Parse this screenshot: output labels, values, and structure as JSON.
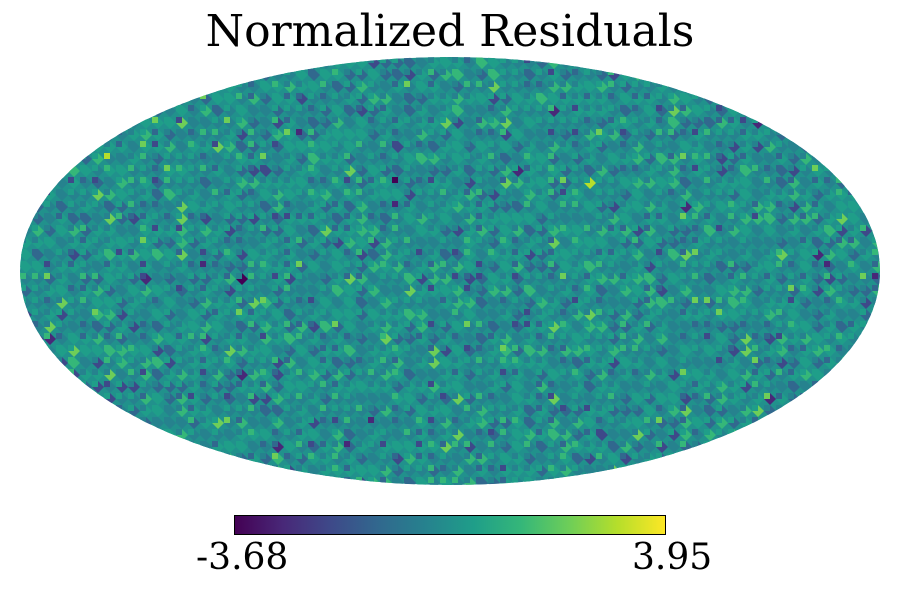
{
  "chart_data": {
    "type": "heatmap",
    "projection": "mollweide",
    "title": "Normalized Residuals",
    "colormap": "viridis",
    "colorbar": {
      "min": -3.68,
      "max": 3.95,
      "min_label": "-3.68",
      "max_label": "3.95"
    }
  },
  "colors": {
    "viridis": [
      "#440154",
      "#482878",
      "#3e4989",
      "#31688e",
      "#26828e",
      "#1f9e89",
      "#35b779",
      "#6ece58",
      "#b5de2b",
      "#fde725"
    ]
  }
}
